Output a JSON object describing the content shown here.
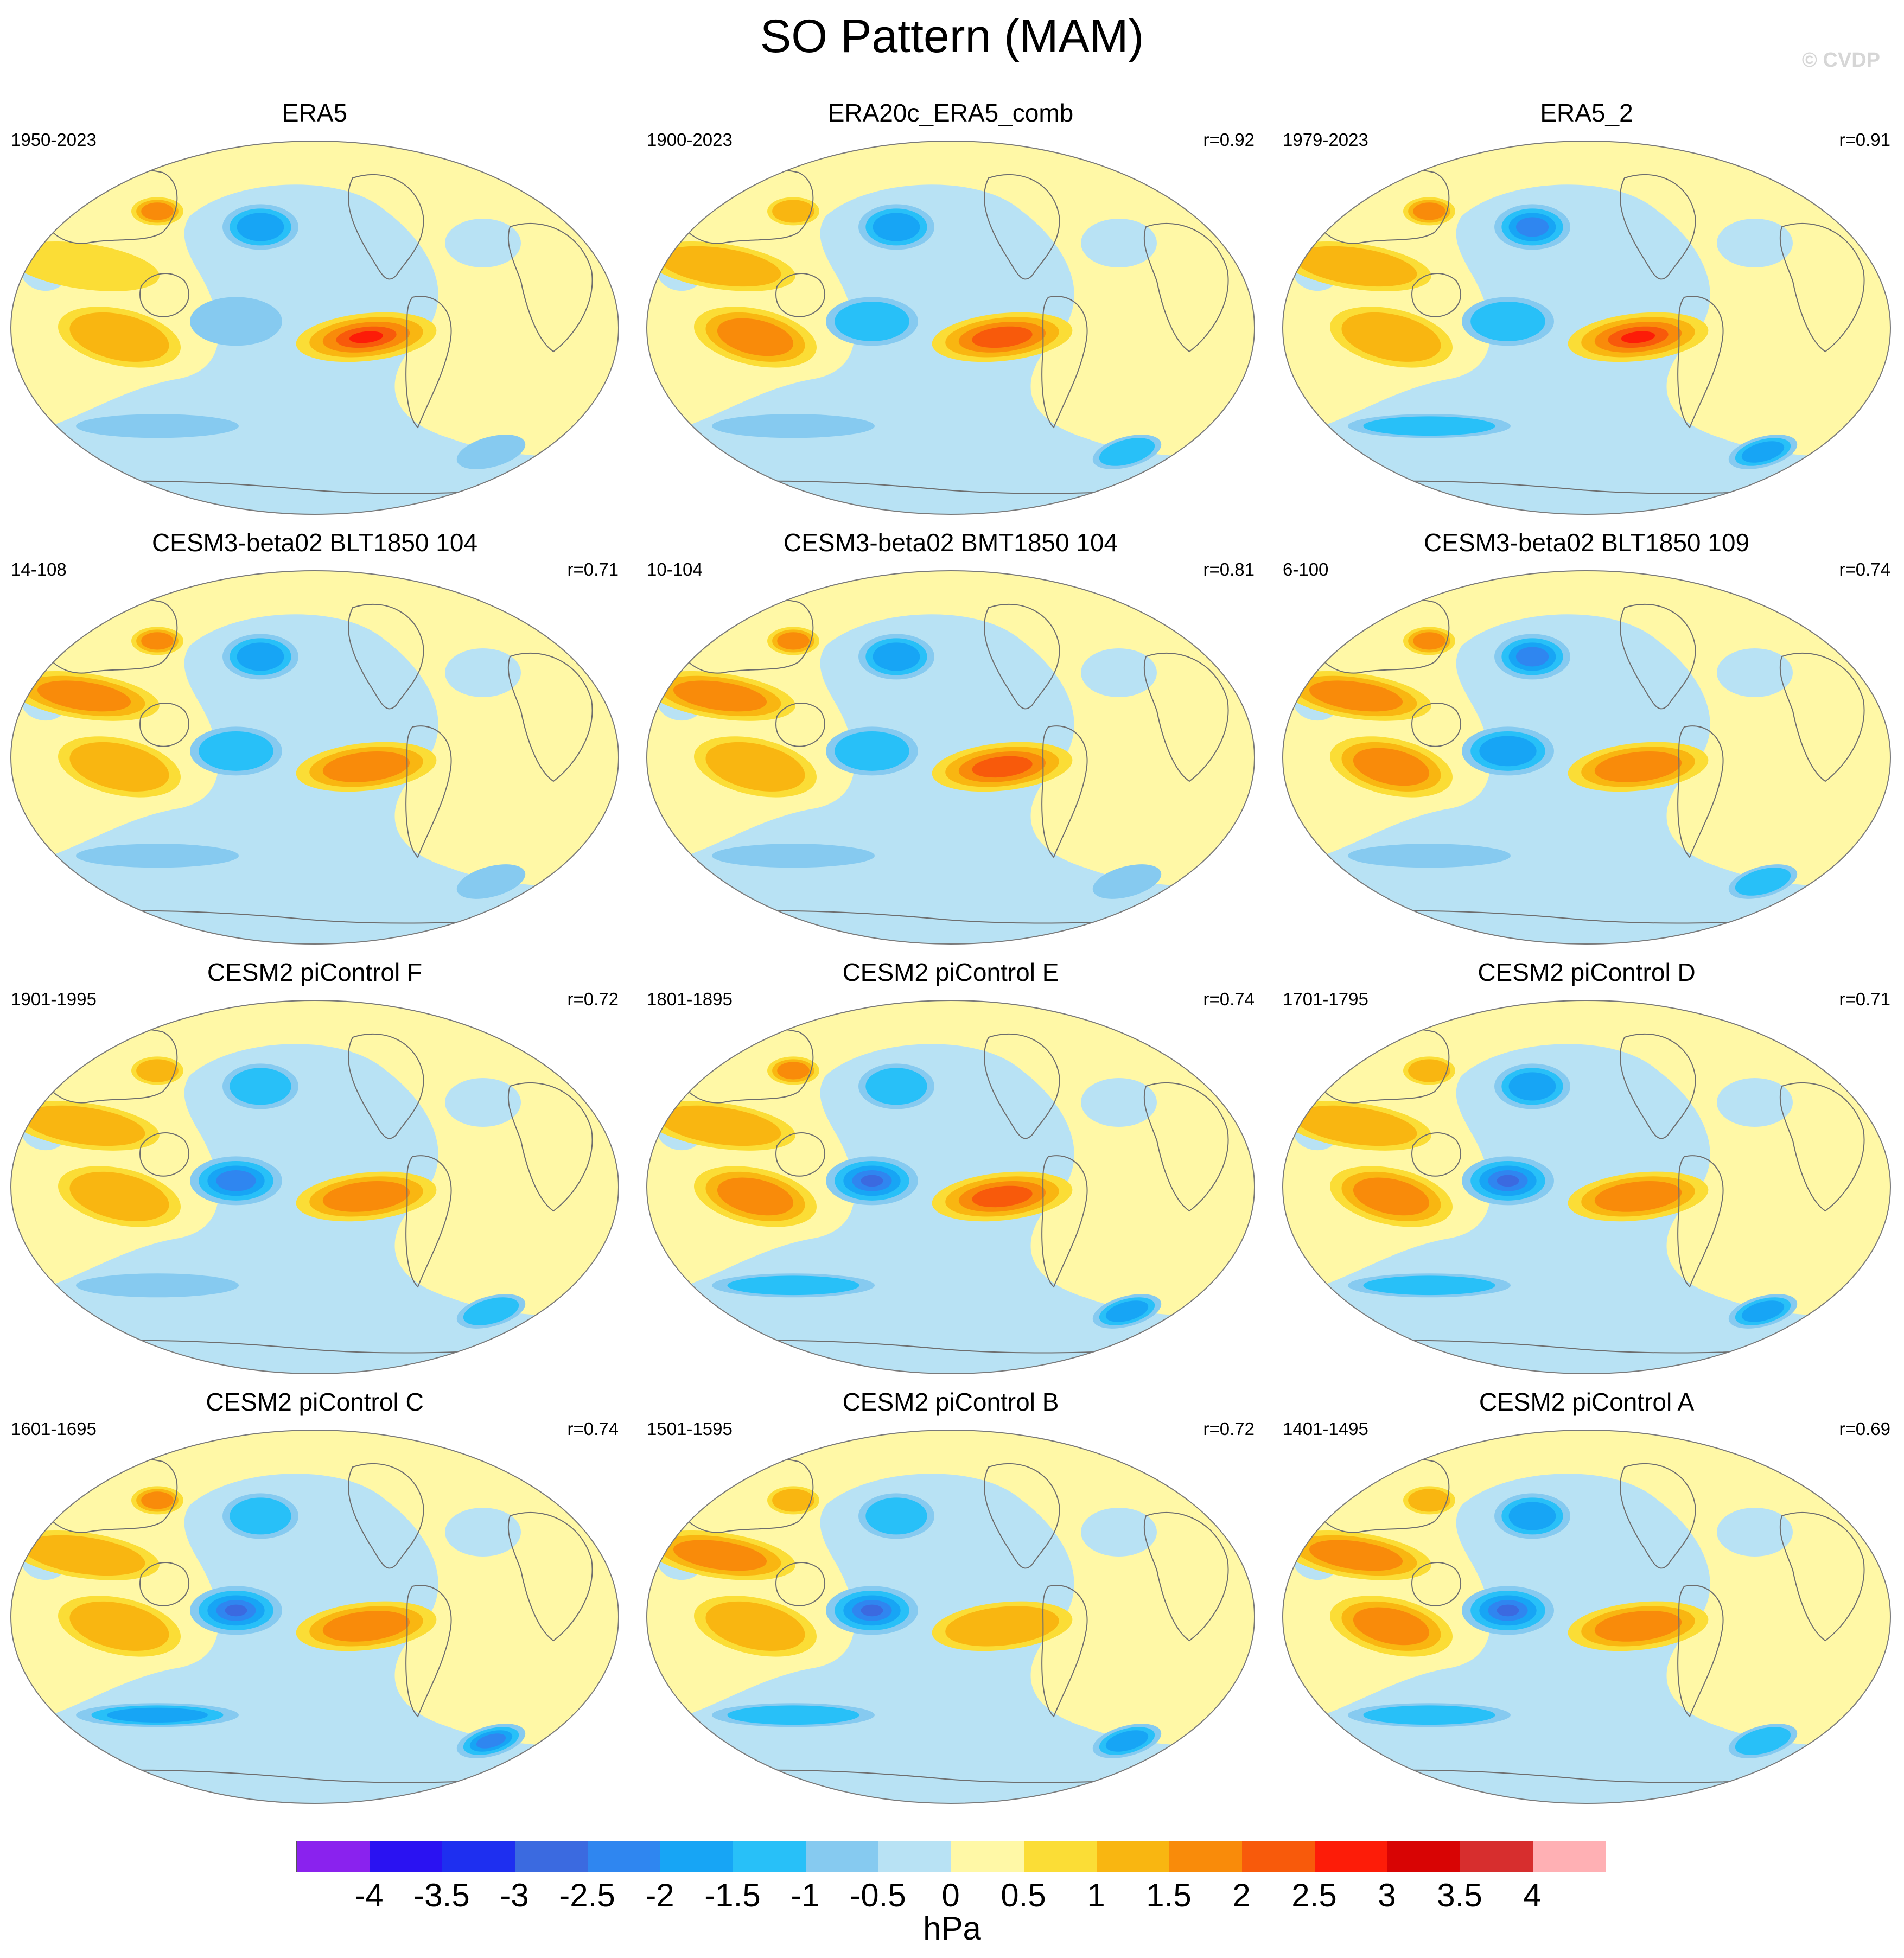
{
  "title": "SO Pattern (MAM)",
  "watermark": "© CVDP",
  "panels": [
    {
      "name": "ERA5",
      "period": "1950-2023",
      "corr": "",
      "pattern": [
        2.6,
        1.6,
        1.3,
        0.6,
        1.0,
        0.5,
        0.3
      ]
    },
    {
      "name": "ERA20c_ERA5_comb",
      "period": "1900-2023",
      "corr": "r=0.92",
      "pattern": [
        2.1,
        1.6,
        1.2,
        0.9,
        1.4,
        0.8,
        0.5
      ]
    },
    {
      "name": "ERA5_2",
      "period": "1979-2023",
      "corr": "r=0.91",
      "pattern": [
        2.5,
        1.8,
        1.4,
        0.9,
        1.1,
        0.9,
        1.0
      ]
    },
    {
      "name": "CESM3-beta02 BLT1850 104",
      "period": "14-108",
      "corr": "r=0.71",
      "pattern": [
        1.3,
        1.6,
        1.5,
        1.5,
        1.2,
        0.9,
        0.3
      ]
    },
    {
      "name": "CESM3-beta02 BMT1850 104",
      "period": "10-104",
      "corr": "r=0.81",
      "pattern": [
        1.8,
        1.6,
        1.4,
        1.5,
        1.0,
        0.8,
        0.3
      ]
    },
    {
      "name": "CESM3-beta02 BLT1850 109",
      "period": "6-100",
      "corr": "r=0.74",
      "pattern": [
        1.5,
        1.9,
        1.6,
        1.5,
        1.7,
        1.6,
        0.4
      ]
    },
    {
      "name": "CESM2 piControl F",
      "period": "1901-1995",
      "corr": "r=0.72",
      "pattern": [
        1.3,
        1.1,
        1.2,
        0.9,
        0.8,
        2.1,
        0.5
      ]
    },
    {
      "name": "CESM2 piControl E",
      "period": "1801-1895",
      "corr": "r=0.74",
      "pattern": [
        1.8,
        1.1,
        1.3,
        1.2,
        1.3,
        2.7,
        1.0
      ]
    },
    {
      "name": "CESM2 piControl D",
      "period": "1701-1795",
      "corr": "r=0.71",
      "pattern": [
        1.4,
        1.3,
        1.2,
        1.1,
        1.3,
        2.6,
        1.0
      ]
    },
    {
      "name": "CESM2 piControl C",
      "period": "1601-1695",
      "corr": "r=0.74",
      "pattern": [
        1.3,
        1.1,
        1.3,
        1.2,
        1.1,
        2.5,
        1.6
      ]
    },
    {
      "name": "CESM2 piControl B",
      "period": "1501-1595",
      "corr": "r=0.72",
      "pattern": [
        1.2,
        1.0,
        1.2,
        1.3,
        1.2,
        2.5,
        1.2
      ]
    },
    {
      "name": "CESM2 piControl A",
      "period": "1401-1495",
      "corr": "r=0.69",
      "pattern": [
        1.6,
        1.3,
        1.2,
        1.4,
        1.4,
        2.3,
        0.8
      ]
    }
  ],
  "colorbar": {
    "units": "hPa",
    "labels": [
      "-4",
      "-3.5",
      "-3",
      "-2.5",
      "-2",
      "-1.5",
      "-1",
      "-0.5",
      "0",
      "0.5",
      "1",
      "1.5",
      "2",
      "2.5",
      "3",
      "3.5",
      "4"
    ],
    "colors": [
      "#8a22ee",
      "#2a12f2",
      "#1e2ff0",
      "#3b6ae0",
      "#2f86f0",
      "#17a5f5",
      "#28c0f8",
      "#86caf0",
      "#b8e2f4",
      "#fff8a6",
      "#fbdd36",
      "#f9b611",
      "#f98b0a",
      "#f85a0b",
      "#fd1c08",
      "#d80404",
      "#d72e2e",
      "#ffb0b4"
    ]
  }
}
